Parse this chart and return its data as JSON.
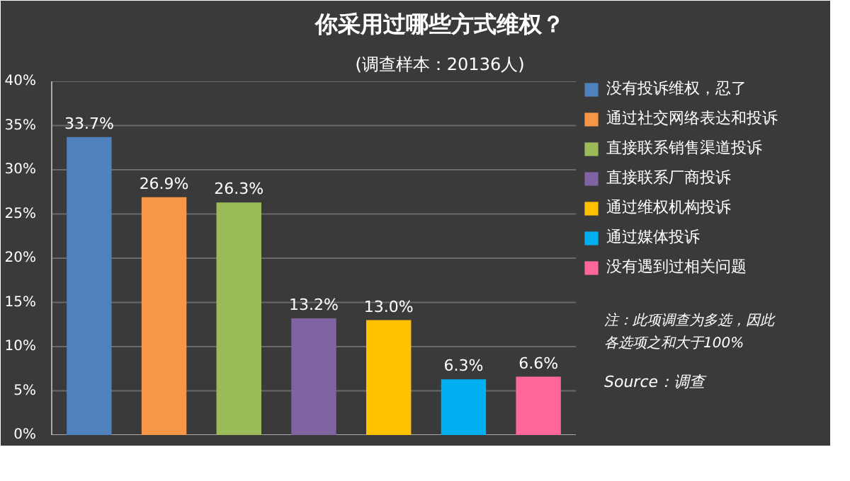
{
  "chart_data": {
    "type": "bar",
    "title": "你采用过哪些方式维权？",
    "subtitle": "(调查样本：20136人)",
    "categories": [
      null,
      null,
      null,
      null,
      null,
      null,
      null
    ],
    "series": [
      {
        "name": "没有投诉维权，忍了",
        "color": "#4f81bd",
        "values": [
          33.7,
          null,
          null,
          null,
          null,
          null,
          null
        ],
        "value_labels": [
          "33.7%",
          null,
          null,
          null,
          null,
          null,
          null
        ]
      },
      {
        "name": "通过社交网络表达和投诉",
        "color": "#f79646",
        "values": [
          null,
          26.9,
          null,
          null,
          null,
          null,
          null
        ],
        "value_labels": [
          null,
          "26.9%",
          null,
          null,
          null,
          null,
          null
        ]
      },
      {
        "name": "直接联系销售渠道投诉",
        "color": "#9bbb59",
        "values": [
          null,
          null,
          26.3,
          null,
          null,
          null,
          null
        ],
        "value_labels": [
          null,
          null,
          "26.3%",
          null,
          null,
          null,
          null
        ]
      },
      {
        "name": "直接联系厂商投诉",
        "color": "#8064a2",
        "values": [
          null,
          null,
          null,
          13.2,
          null,
          null,
          null
        ],
        "value_labels": [
          null,
          null,
          null,
          "13.2%",
          null,
          null,
          null
        ]
      },
      {
        "name": "通过维权机构投诉",
        "color": "#ffc000",
        "values": [
          null,
          null,
          null,
          null,
          13.0,
          null,
          null
        ],
        "value_labels": [
          null,
          null,
          null,
          null,
          "13.0%",
          null,
          null
        ]
      },
      {
        "name": "通过媒体投诉",
        "color": "#00b0f0",
        "values": [
          null,
          null,
          null,
          null,
          null,
          6.3,
          null
        ],
        "value_labels": [
          null,
          null,
          null,
          null,
          null,
          "6.3%",
          null
        ]
      },
      {
        "name": "没有遇到过相关问题",
        "color": "#ff6699",
        "values": [
          null,
          null,
          null,
          null,
          null,
          null,
          6.6
        ],
        "value_labels": [
          null,
          null,
          null,
          null,
          null,
          null,
          "6.6%"
        ]
      }
    ],
    "ylim": [
      0,
      40
    ],
    "yticks": [
      {
        "value": 0,
        "label": "0%"
      },
      {
        "value": 5,
        "label": "5%"
      },
      {
        "value": 10,
        "label": "10%"
      },
      {
        "value": 15,
        "label": "15%"
      },
      {
        "value": 20,
        "label": "20%"
      },
      {
        "value": 25,
        "label": "25%"
      },
      {
        "value": 30,
        "label": "30%"
      },
      {
        "value": 35,
        "label": "35%"
      },
      {
        "value": 40,
        "label": "40%"
      }
    ],
    "grid": "y",
    "legend": "right",
    "annotations": [
      "注：此项调查为多选，因此",
      "各选项之和大于100%",
      "Source：调查"
    ]
  }
}
